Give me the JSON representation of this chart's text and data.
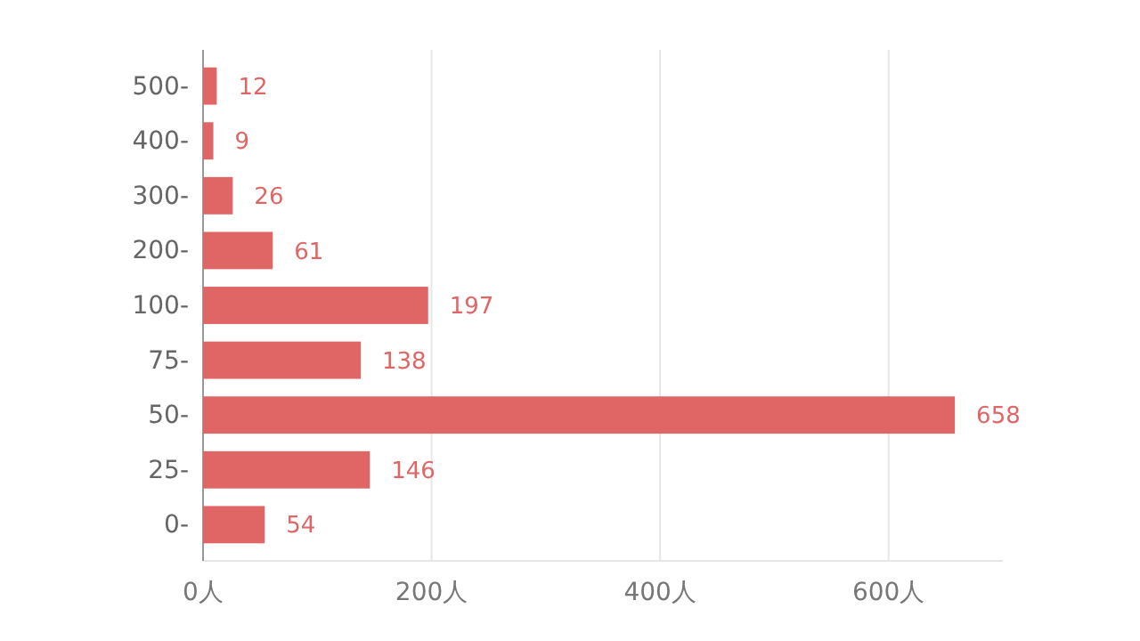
{
  "chart_data": {
    "type": "bar",
    "orientation": "horizontal",
    "categories": [
      "500-",
      "400-",
      "300-",
      "200-",
      "100-",
      "75-",
      "50-",
      "25-",
      "0-"
    ],
    "values": [
      12,
      9,
      26,
      61,
      197,
      138,
      658,
      146,
      54
    ],
    "color": "#e06666",
    "data_labels": true,
    "grid": "x",
    "xlim": [
      0,
      700
    ],
    "xticks": [
      {
        "value": 0,
        "label": "0人"
      },
      {
        "value": 200,
        "label": "200人"
      },
      {
        "value": 400,
        "label": "400人"
      },
      {
        "value": 600,
        "label": "600人"
      }
    ]
  }
}
